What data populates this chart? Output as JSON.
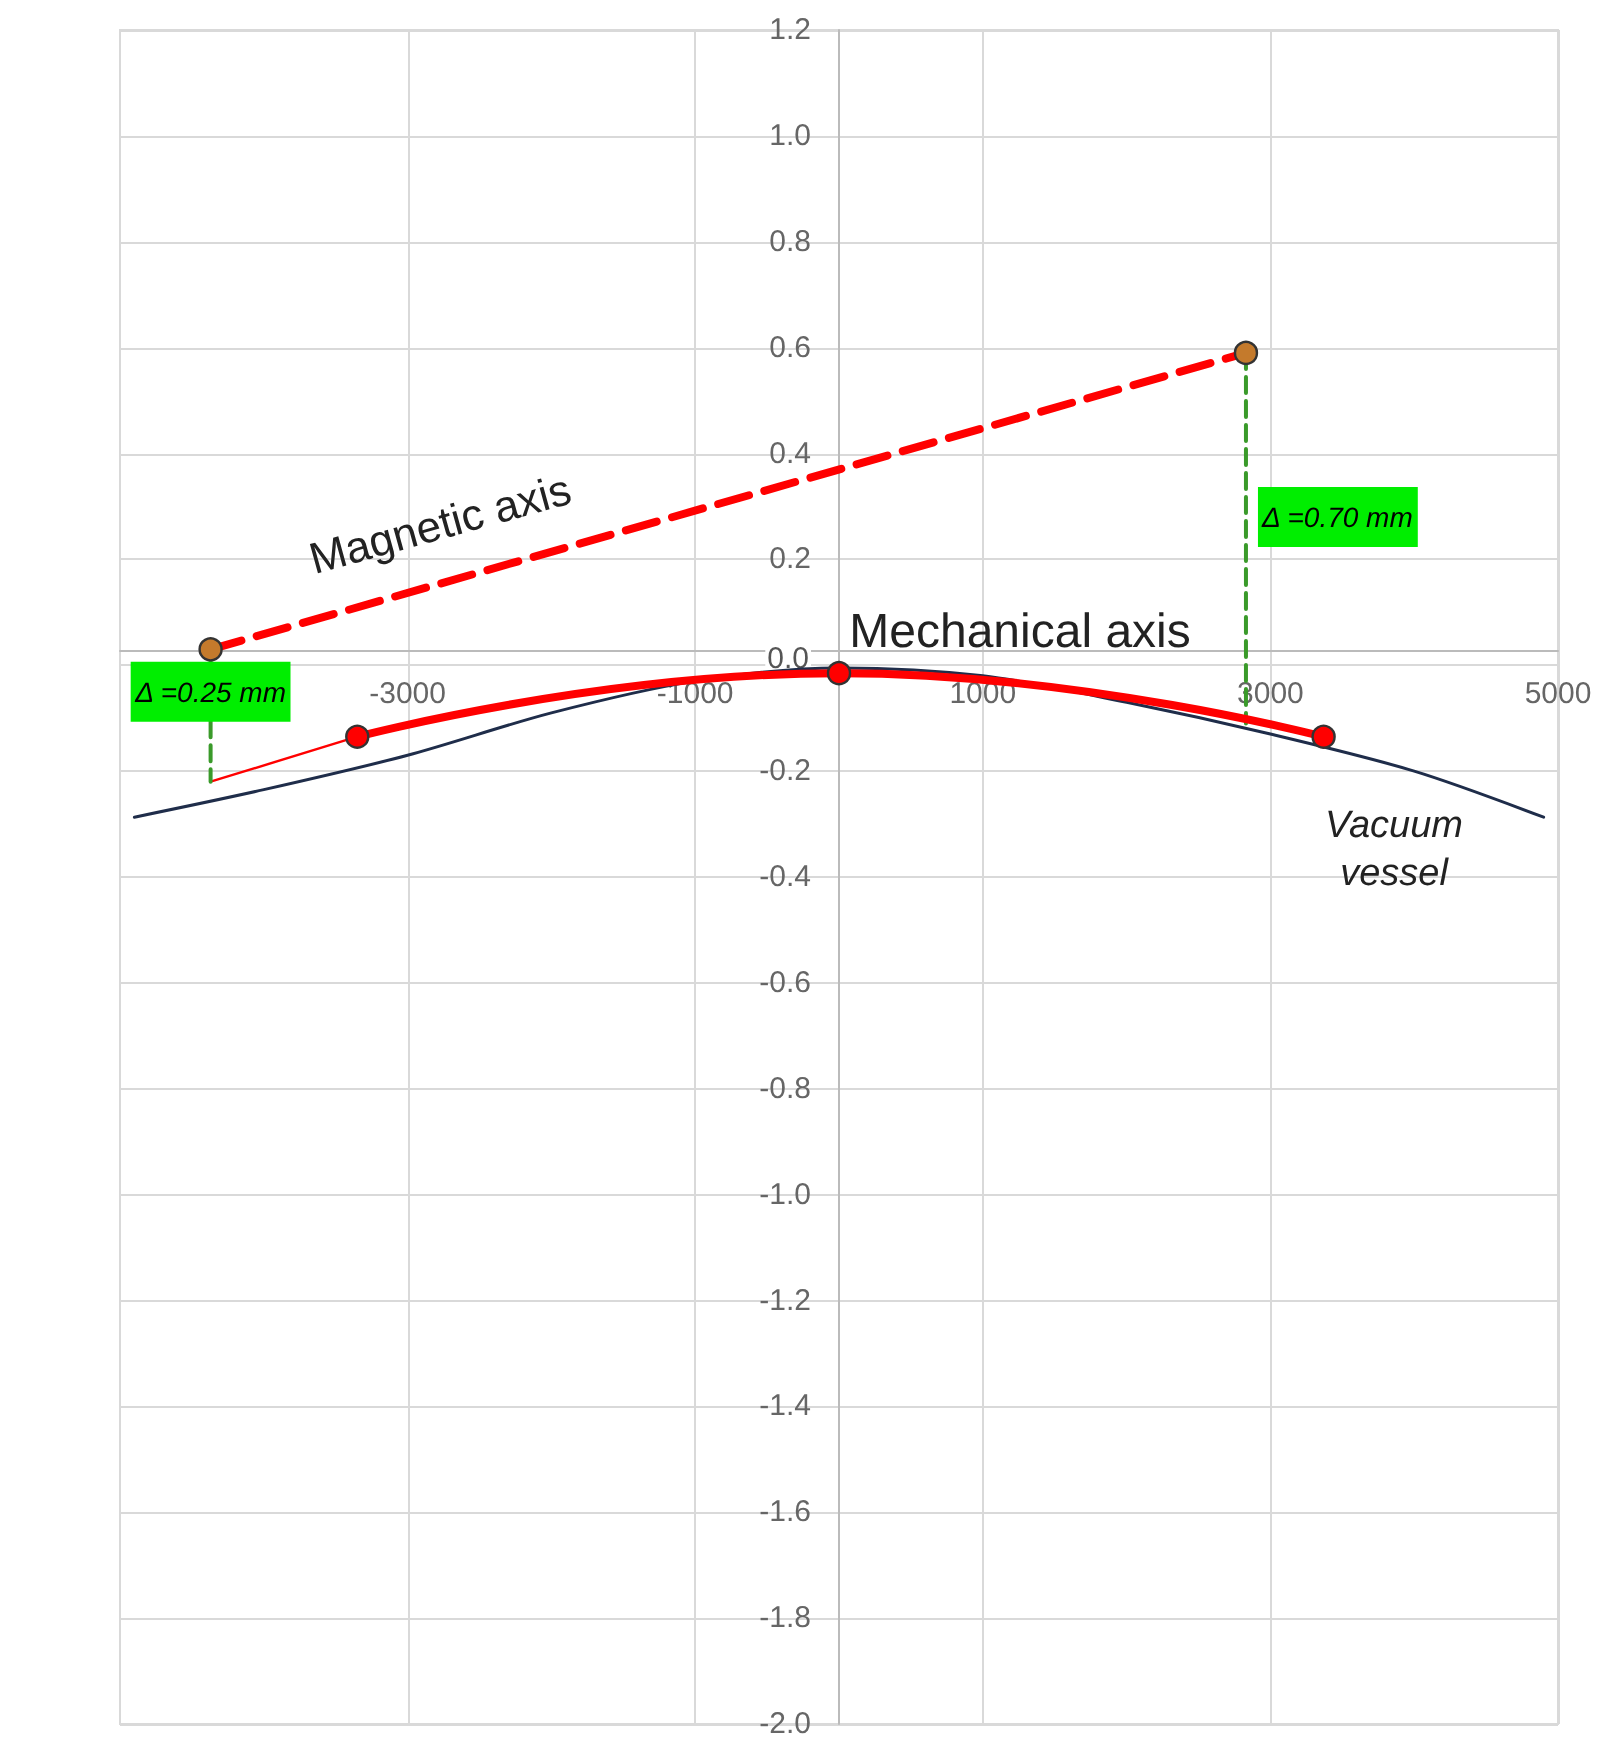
{
  "chart_data": {
    "type": "line",
    "xlim": [
      -5000,
      5000
    ],
    "ylim": [
      -2.0,
      1.2
    ],
    "xticks": [
      -3000,
      -1000,
      1000,
      3000,
      5000
    ],
    "yticks": [
      {
        "value": -2.0,
        "label": "-2.0"
      },
      {
        "value": -1.8,
        "label": "-1.8"
      },
      {
        "value": -1.6,
        "label": "-1.6"
      },
      {
        "value": -1.4,
        "label": "-1.4"
      },
      {
        "value": -1.2,
        "label": "-1.2"
      },
      {
        "value": -1.0,
        "label": "-1.0"
      },
      {
        "value": -0.8,
        "label": "-0.8"
      },
      {
        "value": -0.6,
        "label": "-0.6"
      },
      {
        "value": -0.4,
        "label": "-0.4"
      },
      {
        "value": -0.2,
        "label": "-0.2"
      },
      {
        "value": 0,
        "label": "0.0"
      },
      {
        "value": 0.2,
        "label": "0.2"
      },
      {
        "value": 0.4,
        "label": "0.4"
      },
      {
        "value": 0.6,
        "label": "0.6"
      },
      {
        "value": 0.8,
        "label": "0.8"
      },
      {
        "value": 1.0,
        "label": "1.0"
      },
      {
        "value": 1.2,
        "label": "1.2"
      }
    ],
    "grid": true,
    "series": [
      {
        "color": "#1f2d4a",
        "marker": "none",
        "line_style": "solid",
        "x": [
          -4900,
          -4000,
          -3000,
          -2000,
          -1000,
          0,
          1000,
          2000,
          3000,
          4000,
          4900
        ],
        "values": [
          -0.287,
          -0.235,
          -0.17,
          -0.09,
          -0.03,
          -0.005,
          -0.02,
          -0.07,
          -0.13,
          -0.2,
          -0.287
        ]
      },
      {
        "color": "#ff0000",
        "marker": "circle",
        "line_style": "solid",
        "x": [
          -3350,
          0,
          3370
        ],
        "values": [
          -0.135,
          -0.015,
          -0.135
        ]
      },
      {
        "color": "#ff0000",
        "marker": "none",
        "line_style": "solid",
        "x": [
          -4370,
          -3350
        ],
        "values": [
          -0.22,
          -0.135
        ]
      },
      {
        "color": "#ff0000",
        "marker": "circle",
        "line_style": "dashed",
        "x": [
          -4370,
          2830
        ],
        "values": [
          0.03,
          0.59
        ]
      },
      {
        "color": "#3a9a2a",
        "marker": "none",
        "line_style": "dashed",
        "x": [
          -4370,
          -4370
        ],
        "values": [
          0.03,
          -0.22
        ]
      },
      {
        "color": "#3a9a2a",
        "marker": "none",
        "line_style": "dashed",
        "x": [
          2830,
          2830
        ],
        "values": [
          0.59,
          -0.11
        ]
      }
    ],
    "annotations": [
      "Magnetic axis",
      "Mechanical axis",
      "Vacuum vessel",
      {
        "text": "Δ =0.25 mm",
        "x": -4370,
        "y": -0.05
      },
      {
        "text": "Δ =0.70 mm",
        "x": 2830,
        "y": 0.28
      }
    ]
  }
}
